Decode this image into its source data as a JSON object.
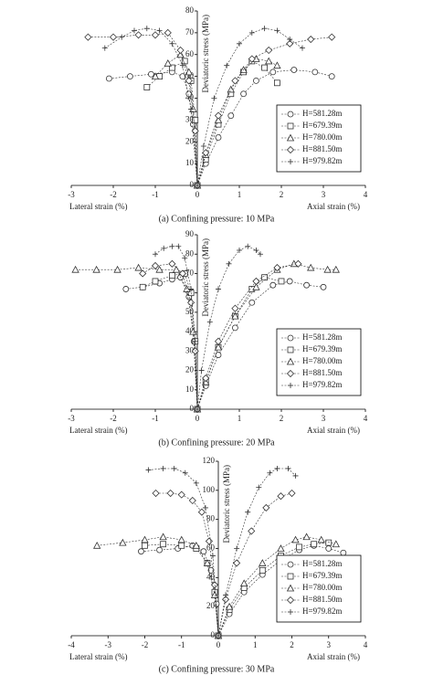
{
  "chart_data": [
    {
      "type": "line",
      "caption": "(a) Confining pressure: 10 MPa",
      "x_label_left": "Lateral strain (%)",
      "x_label_right": "Axial strain (%)",
      "y_label": "Deviatoric stress (MPa)",
      "xlim": [
        -3,
        4
      ],
      "xticks": [
        -3,
        -2,
        -1,
        0,
        1,
        2,
        3,
        4
      ],
      "ylim": [
        0,
        80
      ],
      "yticks": [
        0,
        10,
        20,
        30,
        40,
        50,
        60,
        70,
        80
      ],
      "legend": "right",
      "color": "#333",
      "series": [
        {
          "name": "H=581.28m",
          "marker": "circle",
          "x": [
            -2.1,
            -1.6,
            -1.1,
            -0.6,
            -0.35,
            -0.2,
            -0.1,
            0,
            null,
            0,
            0.2,
            0.5,
            0.8,
            1.1,
            1.4,
            1.8,
            2.3,
            2.8,
            3.2
          ],
          "values": [
            49,
            50,
            51,
            52,
            50,
            42,
            28,
            0,
            null,
            0,
            10,
            22,
            32,
            42,
            48,
            52,
            53,
            52,
            50
          ]
        },
        {
          "name": "H=679.39m",
          "marker": "square",
          "x": [
            -1.2,
            -0.9,
            -0.6,
            -0.3,
            -0.15,
            -0.05,
            0,
            null,
            0,
            0.2,
            0.5,
            0.8,
            1.1,
            1.3,
            1.6,
            1.9
          ],
          "values": [
            45,
            50,
            54,
            57,
            48,
            30,
            0,
            null,
            0,
            12,
            28,
            42,
            52,
            57,
            54,
            47
          ]
        },
        {
          "name": "H=780.00m",
          "marker": "triangle",
          "x": [
            -1.0,
            -0.7,
            -0.4,
            -0.2,
            -0.1,
            0,
            null,
            0,
            0.2,
            0.5,
            0.8,
            1.1,
            1.4,
            1.7,
            1.9
          ],
          "values": [
            50,
            56,
            60,
            52,
            35,
            0,
            null,
            0,
            14,
            30,
            44,
            53,
            58,
            57,
            55
          ]
        },
        {
          "name": "H=881.50m",
          "marker": "diamond",
          "x": [
            -2.6,
            -2.0,
            -1.4,
            -1.0,
            -0.7,
            -0.4,
            -0.2,
            -0.05,
            0,
            null,
            0,
            0.2,
            0.5,
            0.9,
            1.3,
            1.7,
            2.2,
            2.7,
            3.2
          ],
          "values": [
            68,
            68,
            69,
            69,
            70,
            62,
            48,
            25,
            0,
            null,
            0,
            15,
            32,
            48,
            58,
            62,
            65,
            67,
            68
          ]
        },
        {
          "name": "H=979.82m",
          "marker": "plus",
          "x": [
            -2.2,
            -1.8,
            -1.5,
            -1.2,
            -0.9,
            -0.6,
            -0.35,
            -0.15,
            0,
            null,
            0,
            0.15,
            0.4,
            0.7,
            1.0,
            1.3,
            1.6,
            1.9,
            2.2,
            2.5
          ],
          "values": [
            63,
            68,
            71,
            72,
            71,
            65,
            55,
            35,
            0,
            null,
            0,
            18,
            40,
            55,
            65,
            70,
            72,
            71,
            67,
            63
          ]
        }
      ]
    },
    {
      "type": "line",
      "caption": "(b) Confining pressure: 20 MPa",
      "x_label_left": "Lateral strain (%)",
      "x_label_right": "Axial strain (%)",
      "y_label": "Deviatoric stress (MPa)",
      "xlim": [
        -3,
        4
      ],
      "xticks": [
        -3,
        -2,
        -1,
        0,
        1,
        2,
        3,
        4
      ],
      "ylim": [
        0,
        90
      ],
      "yticks": [
        0,
        10,
        20,
        30,
        40,
        50,
        60,
        70,
        80,
        90
      ],
      "legend": "right",
      "color": "#333",
      "series": [
        {
          "name": "H=581.28m",
          "marker": "circle",
          "x": [
            -1.7,
            -1.3,
            -0.9,
            -0.6,
            -0.4,
            -0.2,
            -0.08,
            0,
            null,
            0,
            0.2,
            0.5,
            0.9,
            1.3,
            1.8,
            2.2,
            2.6,
            3.0
          ],
          "values": [
            62,
            63,
            65,
            67,
            68,
            58,
            35,
            0,
            null,
            0,
            12,
            28,
            42,
            55,
            64,
            66,
            64,
            63
          ]
        },
        {
          "name": "H=679.39m",
          "marker": "square",
          "x": [
            -1.3,
            -1.0,
            -0.6,
            -0.3,
            -0.15,
            -0.05,
            0,
            null,
            0,
            0.2,
            0.5,
            0.9,
            1.3,
            1.6,
            2.0
          ],
          "values": [
            63,
            66,
            69,
            70,
            60,
            35,
            0,
            null,
            0,
            14,
            32,
            48,
            62,
            68,
            66
          ]
        },
        {
          "name": "H=780.00m",
          "marker": "triangle",
          "x": [
            -2.9,
            -2.4,
            -1.9,
            -1.4,
            -0.9,
            -0.5,
            -0.25,
            -0.1,
            0,
            null,
            0,
            0.2,
            0.5,
            0.9,
            1.4,
            1.9,
            2.3,
            2.7,
            3.1,
            3.3
          ],
          "values": [
            72,
            72,
            72,
            73,
            72,
            72,
            62,
            40,
            0,
            null,
            0,
            14,
            32,
            48,
            63,
            72,
            75,
            73,
            72,
            72
          ]
        },
        {
          "name": "H=881.50m",
          "marker": "diamond",
          "x": [
            -1.3,
            -1.0,
            -0.6,
            -0.35,
            -0.15,
            -0.05,
            0,
            null,
            0,
            0.2,
            0.5,
            0.9,
            1.4,
            1.9,
            2.4
          ],
          "values": [
            70,
            74,
            75,
            70,
            55,
            30,
            0,
            null,
            0,
            16,
            35,
            52,
            66,
            73,
            75
          ]
        },
        {
          "name": "H=979.82m",
          "marker": "plus",
          "x": [
            -1.0,
            -0.8,
            -0.6,
            -0.45,
            -0.3,
            -0.15,
            -0.05,
            0,
            null,
            0,
            0.1,
            0.3,
            0.5,
            0.75,
            1.0,
            1.2,
            1.4,
            1.5
          ],
          "values": [
            80,
            83,
            84,
            84,
            78,
            62,
            35,
            0,
            null,
            0,
            20,
            45,
            62,
            75,
            82,
            84,
            82,
            80
          ]
        }
      ]
    },
    {
      "type": "line",
      "caption": "(c) Confining pressure: 30 MPa",
      "x_label_left": "Lateral strain (%)",
      "x_label_right": "Axial strain (%)",
      "y_label": "Deviatoric stress (MPa)",
      "xlim": [
        -4,
        4
      ],
      "xticks": [
        -4,
        -3,
        -2,
        -1,
        0,
        1,
        2,
        3,
        4
      ],
      "ylim": [
        0,
        120
      ],
      "yticks": [
        0,
        20,
        40,
        60,
        80,
        100,
        120
      ],
      "legend": "right",
      "color": "#333",
      "series": [
        {
          "name": "H=581.28m",
          "marker": "circle",
          "x": [
            -2.1,
            -1.6,
            -1.1,
            -0.7,
            -0.4,
            -0.2,
            -0.05,
            0,
            null,
            0,
            0.3,
            0.7,
            1.2,
            1.7,
            2.2,
            2.6,
            3.0,
            3.4
          ],
          "values": [
            58,
            59,
            60,
            62,
            58,
            45,
            22,
            0,
            null,
            0,
            15,
            30,
            42,
            52,
            59,
            62,
            60,
            57
          ]
        },
        {
          "name": "H=679.39m",
          "marker": "square",
          "x": [
            -2.0,
            -1.5,
            -1.0,
            -0.6,
            -0.3,
            -0.1,
            0,
            null,
            0,
            0.3,
            0.7,
            1.2,
            1.7,
            2.2,
            2.6,
            3.0
          ],
          "values": [
            62,
            63,
            62,
            60,
            50,
            30,
            0,
            null,
            0,
            18,
            33,
            45,
            55,
            61,
            63,
            64
          ]
        },
        {
          "name": "H=780.00m",
          "marker": "triangle",
          "x": [
            -3.3,
            -2.6,
            -2.0,
            -1.5,
            -1.0,
            -0.6,
            -0.3,
            -0.1,
            0,
            null,
            0,
            0.3,
            0.7,
            1.2,
            1.7,
            2.1,
            2.4,
            2.8,
            3.2
          ],
          "values": [
            62,
            64,
            66,
            68,
            66,
            62,
            50,
            28,
            0,
            null,
            0,
            20,
            36,
            50,
            60,
            66,
            68,
            66,
            63
          ]
        },
        {
          "name": "H=881.50m",
          "marker": "diamond",
          "x": [
            -1.7,
            -1.3,
            -1.0,
            -0.7,
            -0.45,
            -0.25,
            -0.1,
            0,
            null,
            0,
            0.2,
            0.5,
            0.9,
            1.3,
            1.7,
            2.0
          ],
          "values": [
            98,
            98,
            97,
            93,
            85,
            65,
            35,
            0,
            null,
            0,
            25,
            50,
            72,
            88,
            96,
            98
          ]
        },
        {
          "name": "H=979.82m",
          "marker": "plus",
          "x": [
            -1.9,
            -1.5,
            -1.2,
            -0.9,
            -0.6,
            -0.35,
            -0.15,
            0,
            null,
            0,
            0.2,
            0.5,
            0.8,
            1.1,
            1.4,
            1.6,
            1.9,
            2.1
          ],
          "values": [
            114,
            115,
            115,
            112,
            105,
            88,
            55,
            0,
            null,
            0,
            28,
            60,
            85,
            102,
            112,
            115,
            115,
            110
          ]
        }
      ]
    }
  ]
}
